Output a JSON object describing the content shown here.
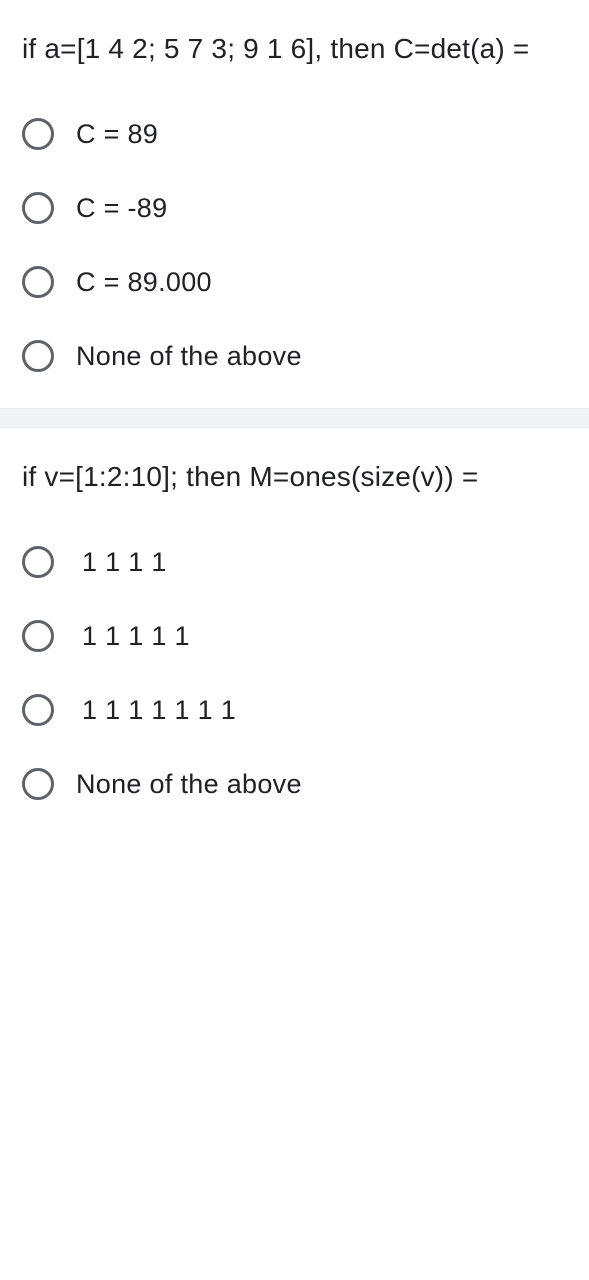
{
  "quiz": {
    "questions": [
      {
        "prompt": "if a=[1 4 2; 5 7 3; 9 1 6], then C=det(a) =",
        "options": [
          "C = 89",
          "C = -89",
          "C = 89.000",
          "None of the above"
        ]
      },
      {
        "prompt": "if v=[1:2:10]; then M=ones(size(v)) =",
        "options": [
          "1 1 1 1",
          "1 1 1 1 1",
          "1 1 1 1 1 1 1",
          "None of the above"
        ]
      }
    ]
  },
  "styles": {
    "text_color": "#202124",
    "radio_border_color": "#5f6368",
    "divider_bg": "#f1f3f4",
    "background": "#ffffff",
    "question_fontsize": 28,
    "option_fontsize": 27,
    "radio_size": 32
  }
}
